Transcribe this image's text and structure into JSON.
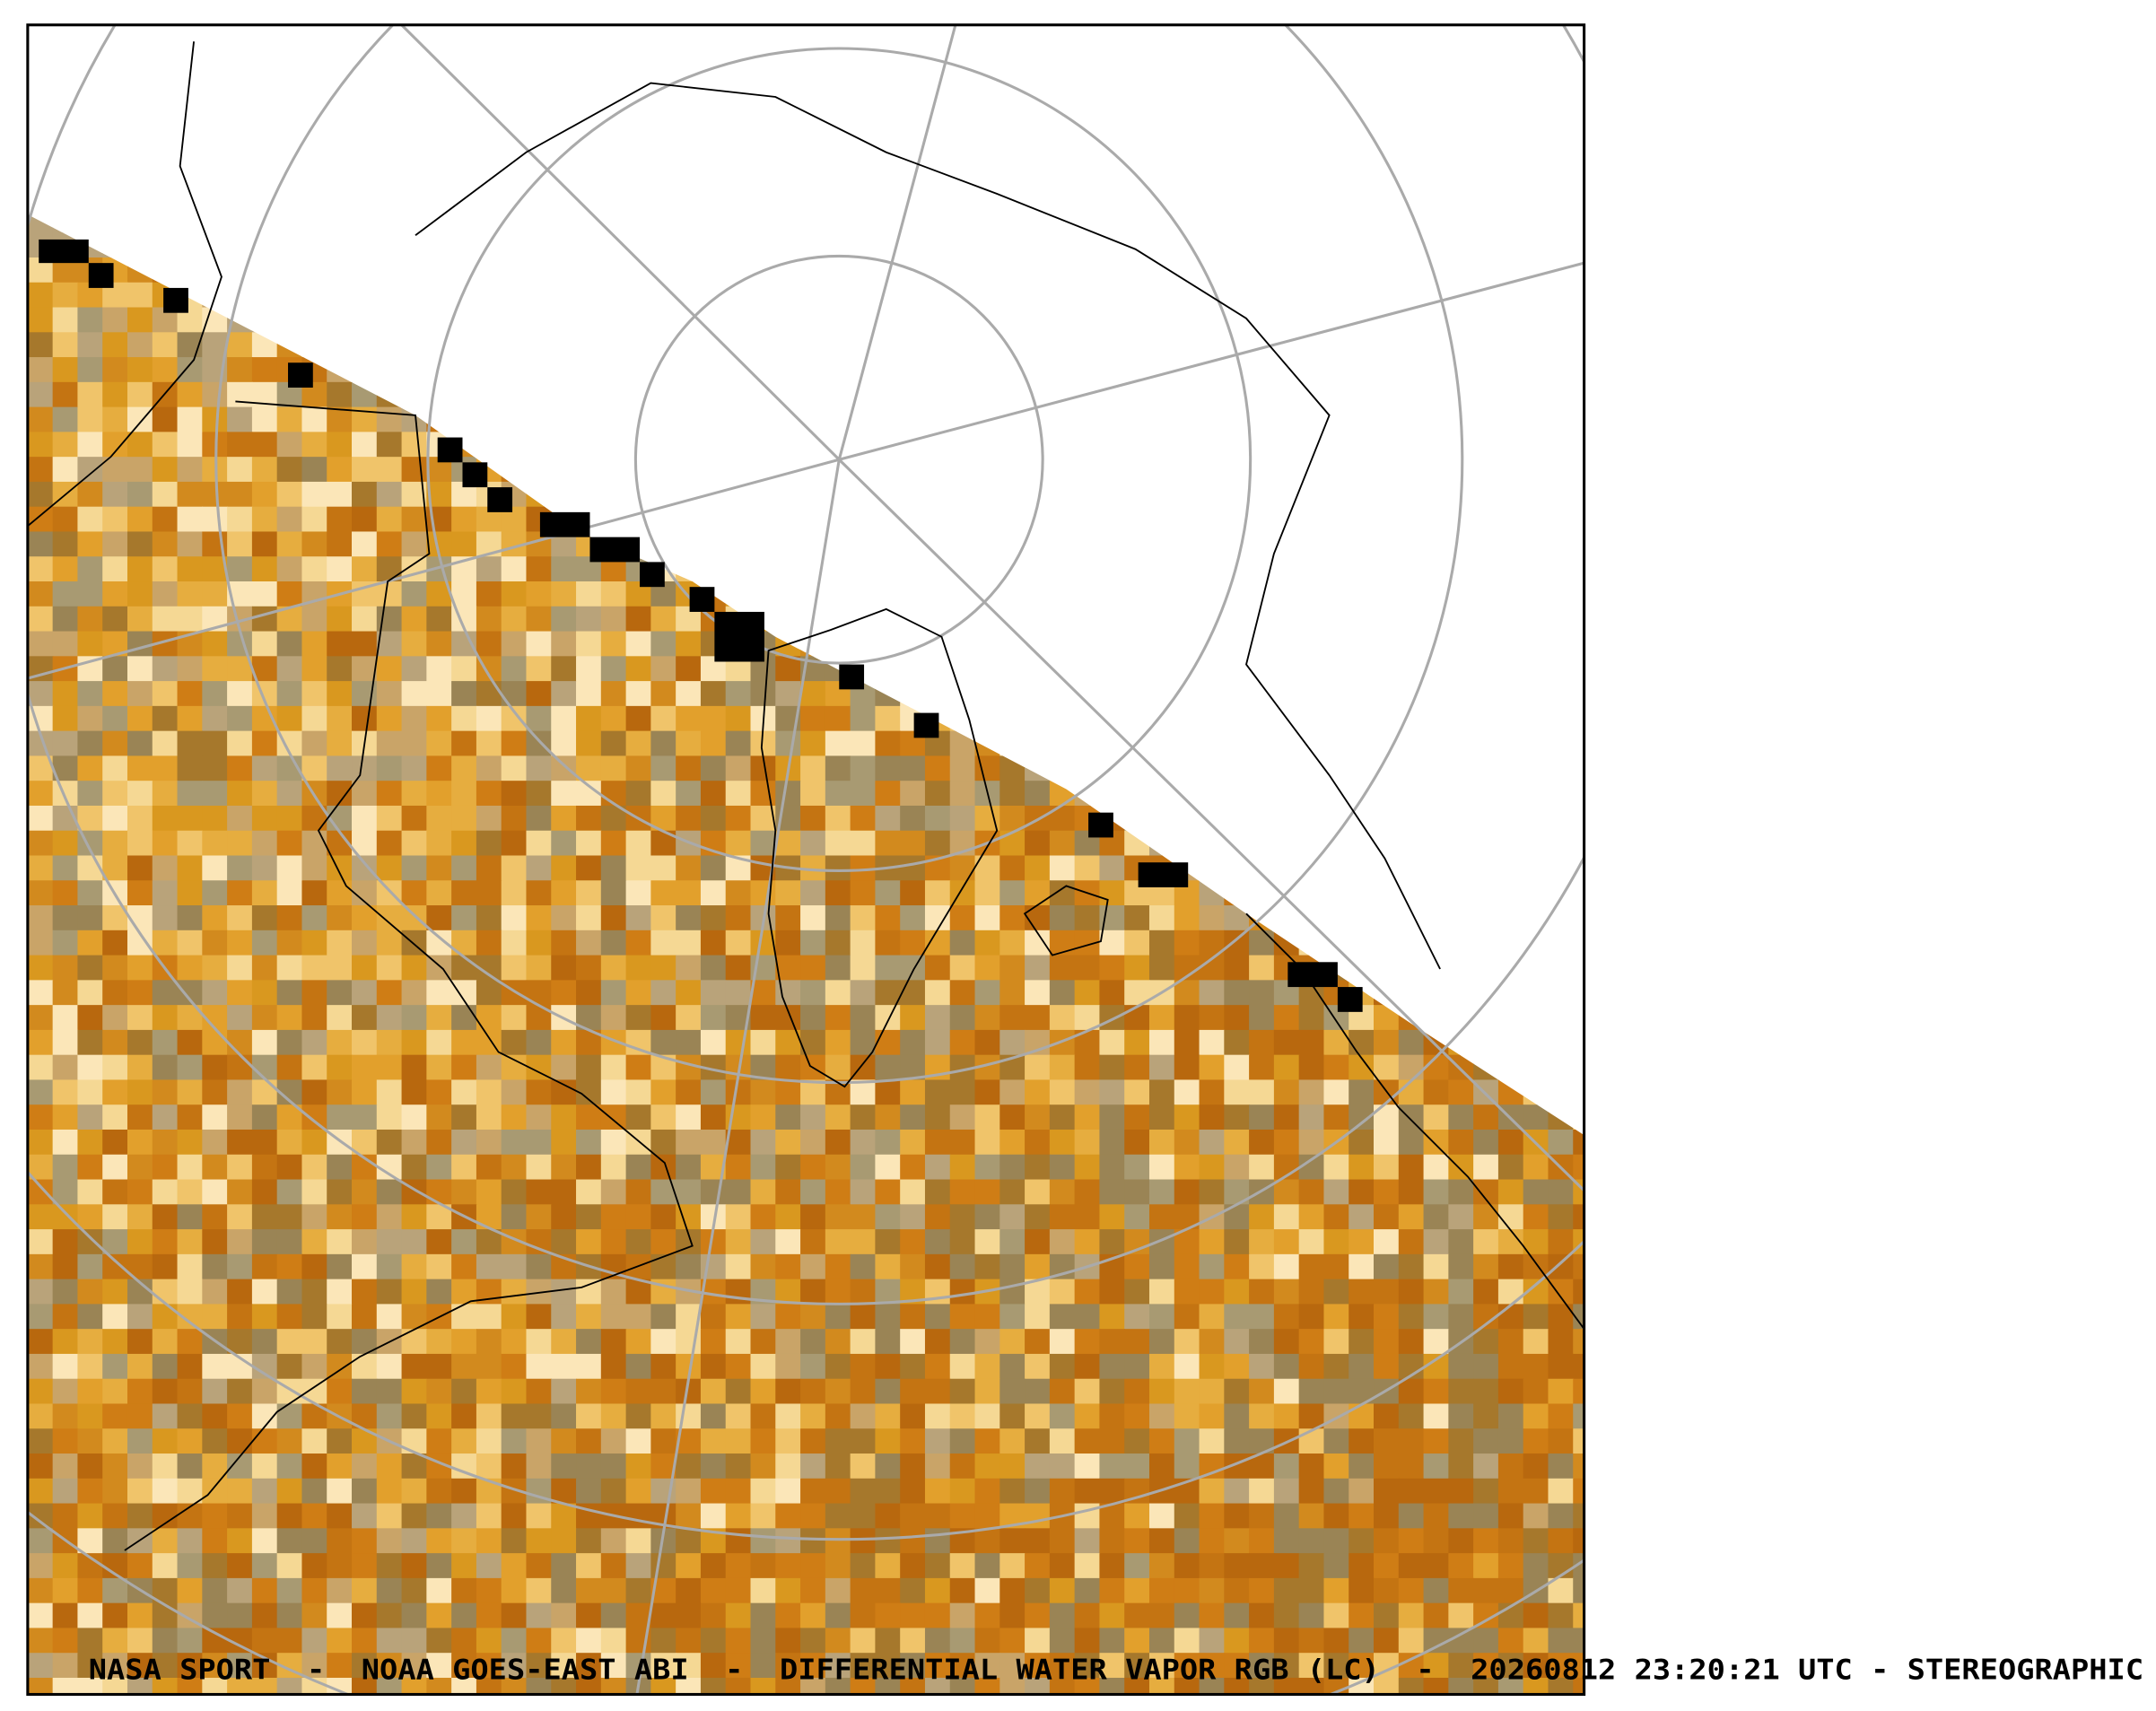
{
  "caption": "NASA SPORT  -  NOAA GOES-EAST ABI  -  DIFFERENTIAL WATER VAPOR RGB (LC)  -  20260812 23:20:21 UTC - STEREOGRAPHIC"
}
